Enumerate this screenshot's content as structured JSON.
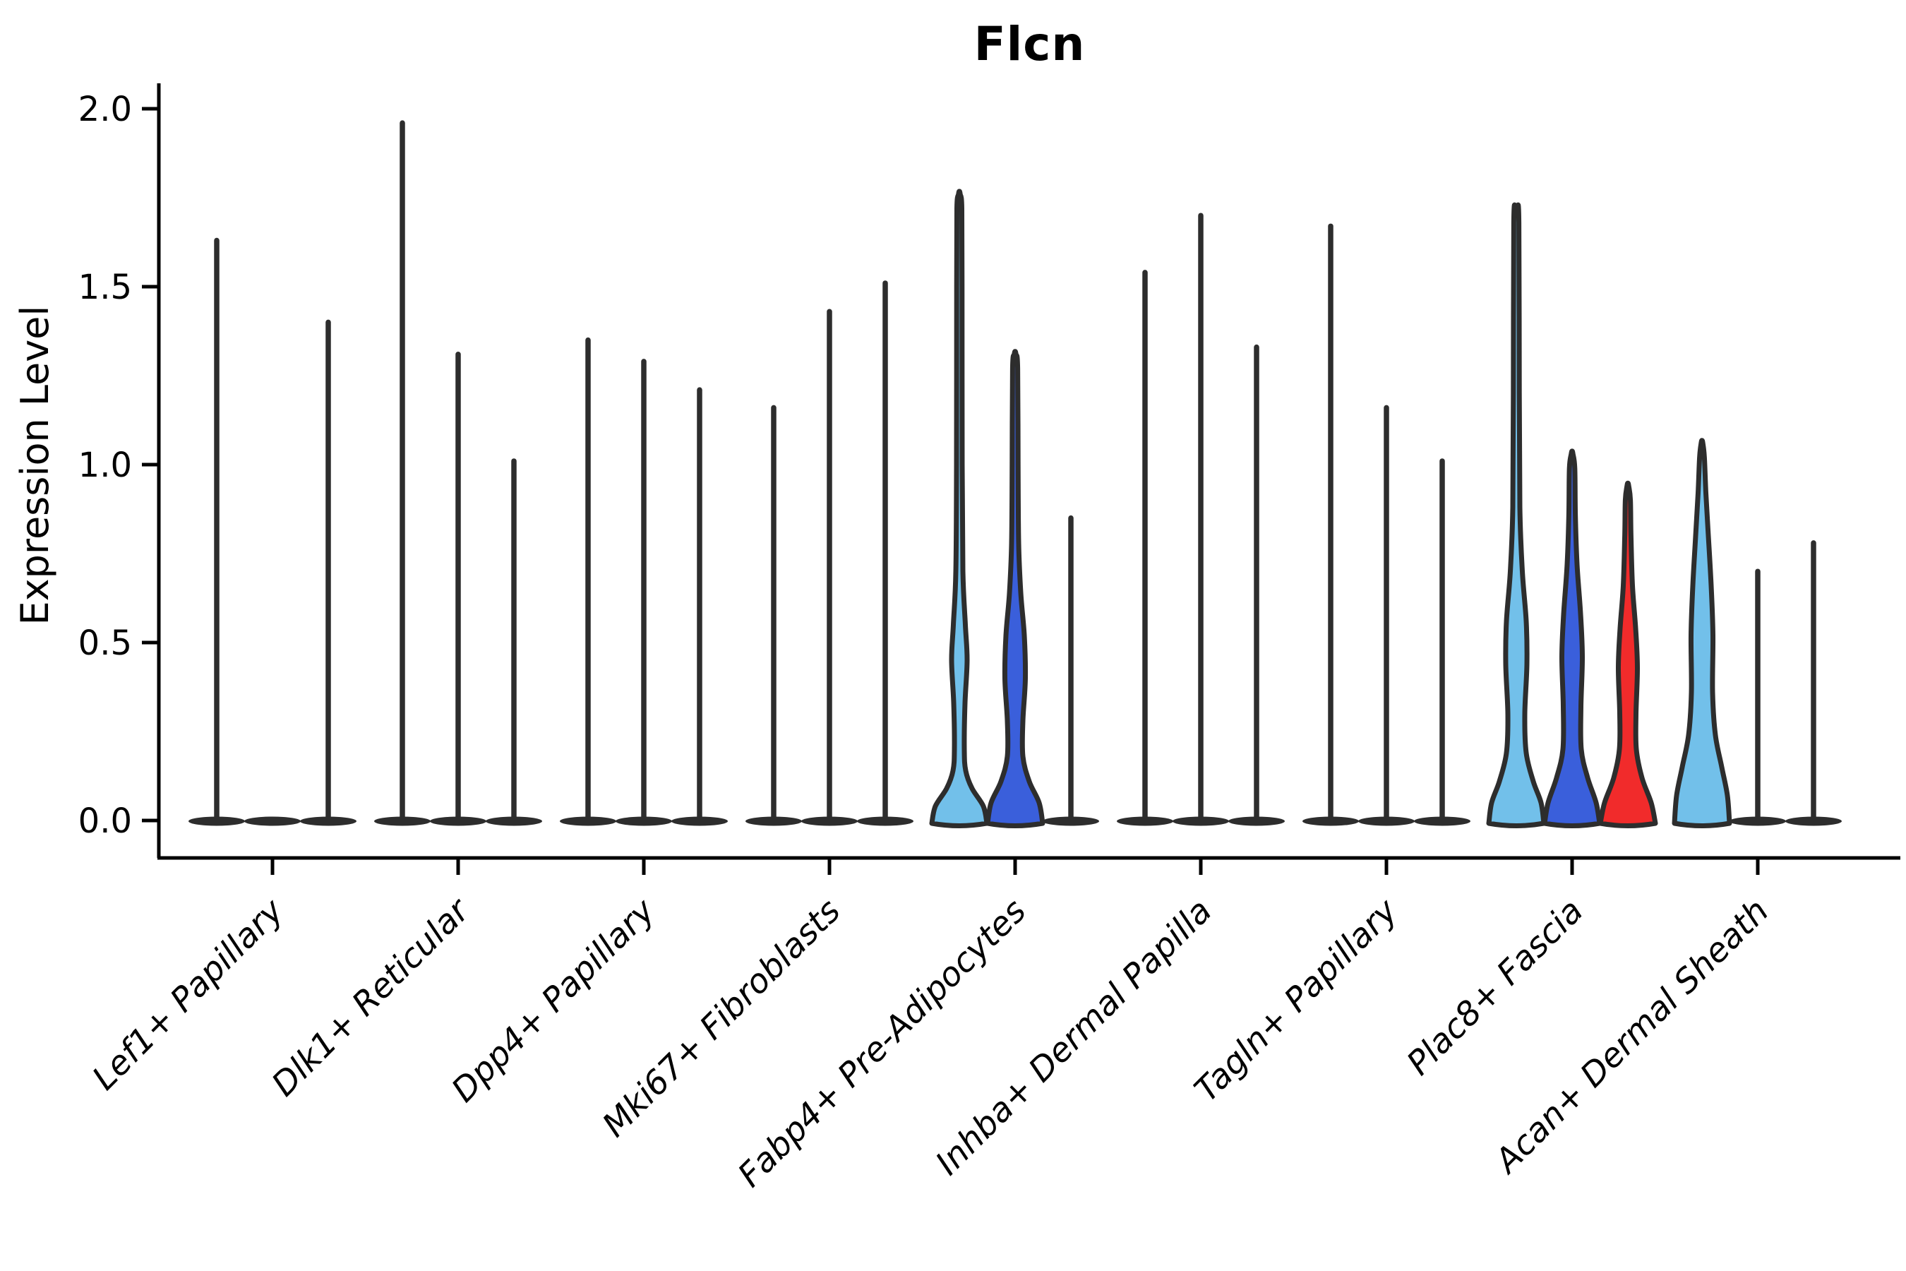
{
  "title": "Flcn",
  "ylabel": "Expression Level",
  "chart_data": {
    "type": "violin",
    "title": "Flcn",
    "xlabel": "",
    "ylabel": "Expression Level",
    "ylim": [
      -0.11,
      2.08
    ],
    "yticks": [
      0.0,
      0.5,
      1.0,
      1.5,
      2.0
    ],
    "ytick_labels": [
      "0.0",
      "0.5",
      "1.0",
      "1.5",
      "2.0"
    ],
    "grid": false,
    "legend": "none",
    "violins_per_category": 3,
    "colors": {
      "lightblue": "#72C0EA",
      "blue": "#3A5FDB",
      "red": "#F12B2B",
      "outline": "#2D2D2D",
      "axis": "#000000"
    },
    "categories": [
      "Lef1+ Papillary",
      "Dlk1+ Reticular",
      "Dpp4+ Papillary",
      "Mki67+ Fibroblasts",
      "Fabp4+ Pre-Adipocytes",
      "Inhba+ Dermal Papilla",
      "Tagln+ Papillary",
      "Plac8+ Fascia",
      "Acan+ Dermal Sheath"
    ],
    "groups": [
      {
        "category": "Lef1+ Papillary",
        "violins": [
          {
            "max": 1.63,
            "filled": false,
            "color": null
          },
          {
            "max": 0.0,
            "filled": false,
            "color": null
          },
          {
            "max": 1.4,
            "filled": false,
            "color": null
          }
        ]
      },
      {
        "category": "Dlk1+ Reticular",
        "violins": [
          {
            "max": 1.96,
            "filled": false,
            "color": null
          },
          {
            "max": 1.31,
            "filled": false,
            "color": null
          },
          {
            "max": 1.01,
            "filled": false,
            "color": null
          }
        ]
      },
      {
        "category": "Dpp4+ Papillary",
        "violins": [
          {
            "max": 1.35,
            "filled": false,
            "color": null
          },
          {
            "max": 1.29,
            "filled": false,
            "color": null
          },
          {
            "max": 1.21,
            "filled": false,
            "color": null
          }
        ]
      },
      {
        "category": "Mki67+ Fibroblasts",
        "violins": [
          {
            "max": 1.16,
            "filled": false,
            "color": null
          },
          {
            "max": 1.43,
            "filled": false,
            "color": null
          },
          {
            "max": 1.51,
            "filled": false,
            "color": null
          }
        ]
      },
      {
        "category": "Fabp4+ Pre-Adipocytes",
        "violins": [
          {
            "max": 1.76,
            "filled": true,
            "color": "lightblue",
            "profile": [
              [
                0,
                39
              ],
              [
                0.04,
                34
              ],
              [
                0.09,
                18
              ],
              [
                0.14,
                9
              ],
              [
                0.2,
                7
              ],
              [
                0.33,
                8
              ],
              [
                0.45,
                11
              ],
              [
                0.55,
                8.5
              ],
              [
                0.7,
                5
              ],
              [
                1.0,
                4
              ],
              [
                1.5,
                3.8
              ],
              [
                1.72,
                3.5
              ],
              [
                1.76,
                1.2
              ]
            ]
          },
          {
            "max": 1.31,
            "filled": true,
            "color": "blue",
            "profile": [
              [
                0,
                39
              ],
              [
                0.05,
                34
              ],
              [
                0.11,
                20
              ],
              [
                0.18,
                11
              ],
              [
                0.28,
                11
              ],
              [
                0.4,
                14.5
              ],
              [
                0.52,
                13
              ],
              [
                0.64,
                8
              ],
              [
                0.78,
                5
              ],
              [
                1.0,
                4.2
              ],
              [
                1.27,
                3.6
              ],
              [
                1.31,
                1.2
              ]
            ]
          },
          {
            "max": 0.85,
            "filled": false,
            "color": null
          }
        ]
      },
      {
        "category": "Inhba+ Dermal Papilla",
        "violins": [
          {
            "max": 1.54,
            "filled": false,
            "color": null
          },
          {
            "max": 1.7,
            "filled": false,
            "color": null
          },
          {
            "max": 1.33,
            "filled": false,
            "color": null
          }
        ]
      },
      {
        "category": "Tagln+ Papillary",
        "violins": [
          {
            "max": 1.67,
            "filled": false,
            "color": null
          },
          {
            "max": 1.16,
            "filled": false,
            "color": null
          },
          {
            "max": 1.01,
            "filled": false,
            "color": null
          }
        ]
      },
      {
        "category": "Plac8+ Fascia",
        "violins": [
          {
            "max": 1.72,
            "filled": true,
            "color": "lightblue",
            "profile": [
              [
                0,
                39
              ],
              [
                0.05,
                35
              ],
              [
                0.11,
                24
              ],
              [
                0.19,
                14
              ],
              [
                0.3,
                12
              ],
              [
                0.44,
                15
              ],
              [
                0.56,
                14
              ],
              [
                0.7,
                8.5
              ],
              [
                0.88,
                5
              ],
              [
                1.2,
                4.2
              ],
              [
                1.68,
                3.6
              ],
              [
                1.72,
                1.2
              ]
            ]
          },
          {
            "max": 1.03,
            "filled": true,
            "color": "blue",
            "profile": [
              [
                0,
                39
              ],
              [
                0.05,
                34
              ],
              [
                0.12,
                22
              ],
              [
                0.2,
                13
              ],
              [
                0.32,
                12.5
              ],
              [
                0.46,
                14.5
              ],
              [
                0.58,
                12
              ],
              [
                0.72,
                7
              ],
              [
                0.86,
                4.6
              ],
              [
                0.99,
                3.8
              ],
              [
                1.03,
                1.2
              ]
            ]
          },
          {
            "max": 0.94,
            "filled": true,
            "color": "red",
            "profile": [
              [
                0,
                39
              ],
              [
                0.05,
                33
              ],
              [
                0.12,
                20
              ],
              [
                0.2,
                12
              ],
              [
                0.3,
                11.5
              ],
              [
                0.43,
                13.5
              ],
              [
                0.54,
                11
              ],
              [
                0.66,
                6.5
              ],
              [
                0.8,
                4.4
              ],
              [
                0.9,
                3.6
              ],
              [
                0.94,
                1.2
              ]
            ]
          }
        ]
      },
      {
        "category": "Acan+ Dermal Sheath",
        "violins": [
          {
            "max": 1.06,
            "filled": true,
            "color": "lightblue",
            "profile": [
              [
                0,
                39
              ],
              [
                0.07,
                36
              ],
              [
                0.15,
                28
              ],
              [
                0.24,
                19
              ],
              [
                0.36,
                15
              ],
              [
                0.52,
                15.5
              ],
              [
                0.66,
                13
              ],
              [
                0.8,
                9
              ],
              [
                0.92,
                5.5
              ],
              [
                1.02,
                3.4
              ],
              [
                1.06,
                1.2
              ]
            ]
          },
          {
            "max": 0.7,
            "filled": false,
            "color": null
          },
          {
            "max": 0.78,
            "filled": false,
            "color": null
          }
        ]
      }
    ]
  }
}
